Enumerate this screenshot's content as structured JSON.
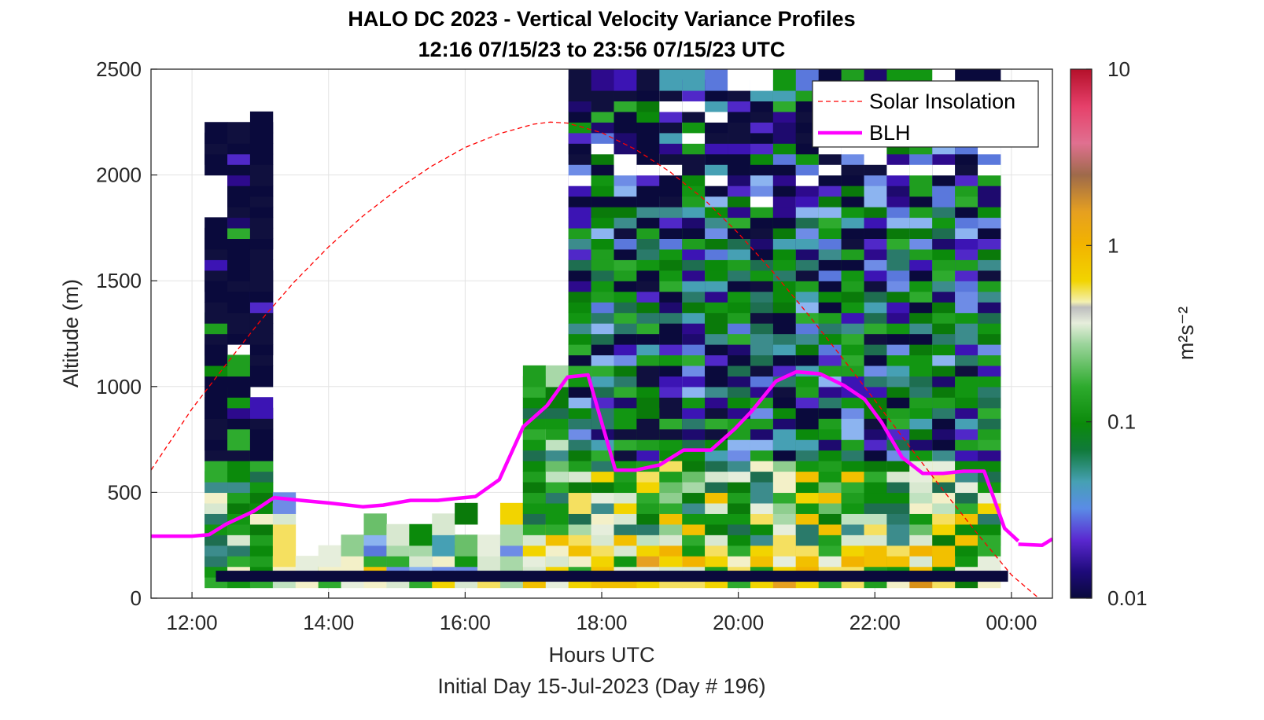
{
  "chart_data": {
    "type": "heatmap",
    "title": "HALO DC 2023 - Vertical Velocity Variance Profiles",
    "subtitle": "12:16 07/15/23 to 23:56 07/15/23  UTC",
    "xlabel": "Hours UTC",
    "xlabel2": "Initial Day 15-Jul-2023 (Day # 196)",
    "ylabel": "Altitude (m)",
    "colorbar_label": "m²s⁻²",
    "x_range_hours": [
      11.4,
      24.6
    ],
    "y_range_m": [
      0,
      2500
    ],
    "x_tick_hours": [
      12,
      14,
      16,
      18,
      20,
      22,
      24
    ],
    "x_tick_labels": [
      "12:00",
      "14:00",
      "16:00",
      "18:00",
      "20:00",
      "22:00",
      "00:00"
    ],
    "y_ticks": [
      0,
      500,
      1000,
      1500,
      2000,
      2500
    ],
    "y_tick_labels": [
      "0",
      "500",
      "1000",
      "1500",
      "2000",
      "2500"
    ],
    "colorbar": {
      "scale": "log",
      "range": [
        0.01,
        10
      ],
      "tick_values": [
        0.01,
        0.1,
        1,
        10
      ],
      "tick_labels": [
        "0.01",
        "0.1",
        "1",
        "10"
      ]
    },
    "grid": true,
    "legend_position": "top-right",
    "series": [
      {
        "name": "Solar Insolation",
        "style": "dashed",
        "color": "#ff0000",
        "x": [
          11.4,
          12.0,
          12.5,
          13.0,
          13.5,
          14.0,
          14.5,
          15.0,
          15.5,
          16.0,
          16.5,
          17.0,
          17.25,
          17.5,
          18.0,
          18.5,
          19.0,
          19.5,
          20.0,
          20.5,
          21.0,
          21.5,
          22.0,
          22.5,
          23.0,
          23.5,
          24.0,
          24.4
        ],
        "y": [
          605,
          895,
          1105,
          1310,
          1495,
          1660,
          1805,
          1930,
          2040,
          2130,
          2195,
          2240,
          2250,
          2245,
          2200,
          2120,
          2015,
          1885,
          1725,
          1545,
          1350,
          1145,
          935,
          720,
          510,
          305,
          110,
          0
        ]
      },
      {
        "name": "BLH",
        "color": "#ff00ff",
        "x": [
          11.4,
          12.0,
          12.25,
          12.5,
          12.9,
          13.2,
          13.5,
          14.0,
          14.5,
          14.8,
          15.2,
          15.6,
          15.9,
          16.15,
          16.5,
          16.85,
          17.2,
          17.5,
          17.8,
          18.2,
          18.5,
          18.85,
          19.2,
          19.6,
          19.95,
          20.2,
          20.55,
          20.85,
          21.2,
          21.55,
          21.85,
          22.1,
          22.4,
          22.7,
          23.0,
          23.3,
          23.6,
          23.9,
          24.1
        ],
        "y": [
          293,
          293,
          300,
          350,
          410,
          475,
          465,
          450,
          432,
          440,
          462,
          462,
          472,
          480,
          560,
          810,
          910,
          1045,
          1055,
          605,
          605,
          630,
          700,
          700,
          800,
          885,
          1025,
          1070,
          1060,
          1005,
          940,
          830,
          665,
          590,
          590,
          600,
          600,
          330,
          270
        ]
      },
      {
        "name": "BLH (segment)",
        "color": "#ff00ff",
        "x": [
          24.1,
          24.45,
          24.6
        ],
        "y": [
          255,
          250,
          280
        ]
      }
    ]
  }
}
